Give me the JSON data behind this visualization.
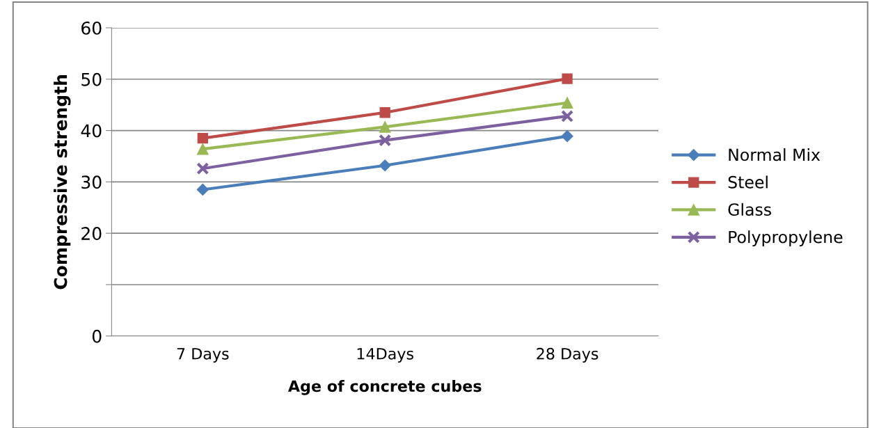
{
  "chart_data": {
    "type": "line",
    "xlabel": "Age of concrete cubes",
    "ylabel": "Compressive strength",
    "categories": [
      "7 Days",
      "14Days",
      "28 Days"
    ],
    "series": [
      {
        "name": "Normal Mix",
        "color": "#4a7ebb",
        "values": [
          28.5,
          33.2,
          38.9
        ],
        "marker": "diamond"
      },
      {
        "name": "Steel",
        "color": "#be4b48",
        "values": [
          38.5,
          43.5,
          50.1
        ],
        "marker": "square"
      },
      {
        "name": "Glass",
        "color": "#98b954",
        "values": [
          36.4,
          40.7,
          45.4
        ],
        "marker": "triangle"
      },
      {
        "name": "Polypropylene",
        "color": "#7d60a0",
        "values": [
          32.6,
          38.1,
          42.8
        ],
        "marker": "cross"
      }
    ],
    "ylim": [
      0,
      60
    ],
    "yticks": [
      0,
      {
        "value": 10,
        "label": null
      },
      20,
      30,
      40,
      50,
      60
    ],
    "grid": "y",
    "legend": "right"
  }
}
